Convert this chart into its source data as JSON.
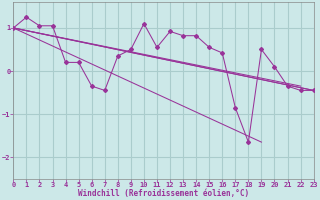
{
  "background_color": "#cce8e8",
  "line_color": "#993399",
  "grid_color": "#aacccc",
  "xlim": [
    0,
    23
  ],
  "ylim": [
    -2.5,
    1.6
  ],
  "yticks": [
    -2,
    -1,
    0,
    1
  ],
  "xticks": [
    0,
    1,
    2,
    3,
    4,
    5,
    6,
    7,
    8,
    9,
    10,
    11,
    12,
    13,
    14,
    15,
    16,
    17,
    18,
    19,
    20,
    21,
    22,
    23
  ],
  "xlabel": "Windchill (Refroidissement éolien,°C)",
  "main_x": [
    0,
    1,
    2,
    3,
    4,
    5,
    6,
    7,
    8,
    9,
    10,
    11,
    12,
    13,
    14,
    15,
    16,
    17,
    18,
    19,
    20,
    21,
    22,
    23
  ],
  "main_y": [
    1.0,
    1.25,
    1.05,
    1.05,
    0.2,
    0.2,
    -0.35,
    -0.45,
    0.35,
    0.5,
    1.1,
    0.55,
    0.92,
    0.82,
    0.82,
    0.55,
    0.42,
    -0.85,
    -1.65,
    0.5,
    0.1,
    -0.35,
    -0.45,
    -0.45
  ],
  "straight_lines": [
    {
      "x": [
        0,
        23
      ],
      "y": [
        1.0,
        -0.45
      ]
    },
    {
      "x": [
        0,
        19
      ],
      "y": [
        1.0,
        -1.65
      ]
    },
    {
      "x": [
        0,
        22
      ],
      "y": [
        1.0,
        -0.35
      ]
    },
    {
      "x": [
        0,
        23
      ],
      "y": [
        1.0,
        -0.45
      ]
    }
  ]
}
